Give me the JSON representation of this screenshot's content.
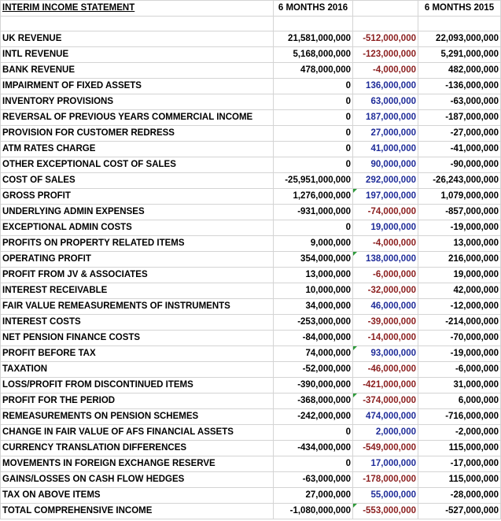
{
  "header": {
    "title": "INTERIM INCOME STATEMENT",
    "col_2016": "6 MONTHS 2016",
    "col_change": "",
    "col_2015": "6 MONTHS 2015"
  },
  "colors": {
    "negative_change": "#8b1e1e",
    "positive_change": "#1f2c99",
    "comment_flag": "#2e9a3a"
  },
  "rows": [
    {
      "label": "UK REVENUE",
      "v2016": "21,581,000,000",
      "change": "-512,000,000",
      "v2015": "22,093,000,000"
    },
    {
      "label": "INTL REVENUE",
      "v2016": "5,168,000,000",
      "change": "-123,000,000",
      "v2015": "5,291,000,000"
    },
    {
      "label": "BANK REVENUE",
      "v2016": "478,000,000",
      "change": "-4,000,000",
      "v2015": "482,000,000"
    },
    {
      "label": "IMPAIRMENT OF FIXED ASSETS",
      "v2016": "0",
      "change": "136,000,000",
      "v2015": "-136,000,000"
    },
    {
      "label": "INVENTORY PROVISIONS",
      "v2016": "0",
      "change": "63,000,000",
      "v2015": "-63,000,000"
    },
    {
      "label": "REVERSAL OF PREVIOUS YEARS COMMERCIAL INCOME",
      "v2016": "0",
      "change": "187,000,000",
      "v2015": "-187,000,000"
    },
    {
      "label": "PROVISION FOR CUSTOMER REDRESS",
      "v2016": "0",
      "change": "27,000,000",
      "v2015": "-27,000,000"
    },
    {
      "label": "ATM RATES CHARGE",
      "v2016": "0",
      "change": "41,000,000",
      "v2015": "-41,000,000"
    },
    {
      "label": "OTHER EXCEPTIONAL COST OF SALES",
      "v2016": "0",
      "change": "90,000,000",
      "v2015": "-90,000,000"
    },
    {
      "label": "COST OF SALES",
      "v2016": "-25,951,000,000",
      "change": "292,000,000",
      "v2015": "-26,243,000,000"
    },
    {
      "label": "GROSS PROFIT",
      "v2016": "1,276,000,000",
      "change": "197,000,000",
      "v2015": "1,079,000,000"
    },
    {
      "label": "UNDERLYING ADMIN EXPENSES",
      "v2016": "-931,000,000",
      "change": "-74,000,000",
      "v2015": "-857,000,000"
    },
    {
      "label": "EXCEPTIONAL ADMIN COSTS",
      "v2016": "0",
      "change": "19,000,000",
      "v2015": "-19,000,000"
    },
    {
      "label": "PROFITS ON PROPERTY RELATED ITEMS",
      "v2016": "9,000,000",
      "change": "-4,000,000",
      "v2015": "13,000,000"
    },
    {
      "label": "OPERATING PROFIT",
      "v2016": "354,000,000",
      "change": "138,000,000",
      "v2015": "216,000,000"
    },
    {
      "label": "PROFIT FROM JV & ASSOCIATES",
      "v2016": "13,000,000",
      "change": "-6,000,000",
      "v2015": "19,000,000"
    },
    {
      "label": "INTEREST RECEIVABLE",
      "v2016": "10,000,000",
      "change": "-32,000,000",
      "v2015": "42,000,000"
    },
    {
      "label": "FAIR VALUE REMEASUREMENTS OF INSTRUMENTS",
      "v2016": "34,000,000",
      "change": "46,000,000",
      "v2015": "-12,000,000"
    },
    {
      "label": "INTEREST COSTS",
      "v2016": "-253,000,000",
      "change": "-39,000,000",
      "v2015": "-214,000,000"
    },
    {
      "label": "NET PENSION FINANCE COSTS",
      "v2016": "-84,000,000",
      "change": "-14,000,000",
      "v2015": "-70,000,000"
    },
    {
      "label": "PROFIT BEFORE TAX",
      "v2016": "74,000,000",
      "change": "93,000,000",
      "v2015": "-19,000,000"
    },
    {
      "label": "TAXATION",
      "v2016": "-52,000,000",
      "change": "-46,000,000",
      "v2015": "-6,000,000"
    },
    {
      "label": "LOSS/PROFIT FROM DISCONTINUED ITEMS",
      "v2016": "-390,000,000",
      "change": "-421,000,000",
      "v2015": "31,000,000"
    },
    {
      "label": "PROFIT FOR THE PERIOD",
      "v2016": "-368,000,000",
      "change": "-374,000,000",
      "v2015": "6,000,000"
    },
    {
      "label": "REMEASUREMENTS ON PENSION SCHEMES",
      "v2016": "-242,000,000",
      "change": "474,000,000",
      "v2015": "-716,000,000"
    },
    {
      "label": "CHANGE IN FAIR VALUE OF AFS FINANCIAL ASSETS",
      "v2016": "0",
      "change": "2,000,000",
      "v2015": "-2,000,000"
    },
    {
      "label": "CURRENCY TRANSLATION DIFFERENCES",
      "v2016": "-434,000,000",
      "change": "-549,000,000",
      "v2015": "115,000,000"
    },
    {
      "label": "MOVEMENTS IN FOREIGN EXCHANGE RESERVE",
      "v2016": "0",
      "change": "17,000,000",
      "v2015": "-17,000,000"
    },
    {
      "label": "GAINS/LOSSES ON CASH FLOW HEDGES",
      "v2016": "-63,000,000",
      "change": "-178,000,000",
      "v2015": "115,000,000"
    },
    {
      "label": "TAX ON ABOVE ITEMS",
      "v2016": "27,000,000",
      "change": "55,000,000",
      "v2015": "-28,000,000"
    },
    {
      "label": "TOTAL COMPREHENSIVE INCOME",
      "v2016": "-1,080,000,000",
      "change": "-553,000,000",
      "v2015": "-527,000,000"
    }
  ]
}
